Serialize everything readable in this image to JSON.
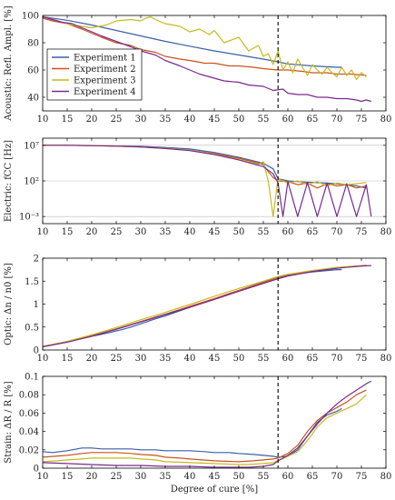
{
  "chart_data": [
    {
      "id": "acoustic",
      "type": "line",
      "ylabel": "Acoustic: Refl. Ampl. [%]",
      "xlim": [
        10,
        80
      ],
      "ylim": [
        30,
        100
      ],
      "xticks": [
        10,
        15,
        20,
        25,
        30,
        35,
        40,
        45,
        50,
        55,
        60,
        65,
        70,
        75,
        80
      ],
      "yticks": [
        40,
        60,
        80,
        100
      ],
      "vline_x": 58,
      "grid": false,
      "legend_position": "top-left",
      "series": [
        {
          "name": "Experiment 1",
          "color": "#3a5fa8",
          "x": [
            10,
            15,
            20,
            25,
            30,
            35,
            40,
            45,
            50,
            55,
            58,
            60,
            65,
            70,
            71
          ],
          "y": [
            99,
            96.5,
            93,
            89,
            85,
            81,
            77.5,
            74,
            71,
            68,
            66,
            64.5,
            63,
            62,
            62
          ]
        },
        {
          "name": "Experiment 2",
          "color": "#c9531f",
          "x": [
            10,
            12,
            15,
            18,
            20,
            22,
            25,
            28,
            30,
            33,
            35,
            38,
            40,
            43,
            45,
            48,
            50,
            53,
            55,
            58,
            60,
            63,
            65,
            68,
            70,
            73,
            76
          ],
          "y": [
            98,
            96,
            94,
            90,
            87,
            84,
            80,
            78,
            75,
            73,
            70,
            68,
            67,
            65,
            65,
            63,
            63,
            62,
            61,
            60,
            60,
            59,
            58,
            58,
            57,
            57,
            56
          ]
        },
        {
          "name": "Experiment 3",
          "color": "#c7ba1e",
          "x": [
            10,
            13,
            16,
            18,
            20,
            23,
            25,
            28,
            30,
            31,
            32,
            33,
            35,
            38,
            40,
            42,
            44,
            45,
            47,
            50,
            52,
            54,
            55,
            56,
            57,
            58,
            59,
            60,
            61,
            62,
            63,
            64,
            65,
            66,
            67,
            68,
            69,
            70,
            71,
            72,
            73,
            74,
            75,
            76
          ],
          "y": [
            99,
            96,
            93,
            92,
            91,
            93,
            96,
            97,
            96,
            98,
            99,
            97,
            94,
            92,
            88,
            90,
            86,
            89,
            80,
            84,
            74,
            78,
            70,
            72,
            64,
            74,
            60,
            66,
            58,
            68,
            62,
            56,
            64,
            60,
            57,
            62,
            58,
            55,
            62,
            56,
            60,
            53,
            58,
            55
          ]
        },
        {
          "name": "Experiment 4",
          "color": "#7a2a8f",
          "x": [
            10,
            12,
            14,
            16,
            18,
            20,
            22,
            25,
            28,
            30,
            33,
            35,
            38,
            40,
            42,
            45,
            47,
            50,
            52,
            55,
            57,
            59,
            60,
            62,
            64,
            66,
            68,
            70,
            72,
            74,
            75,
            76,
            77
          ],
          "y": [
            99,
            97,
            95,
            94,
            91,
            88,
            85,
            81,
            77,
            74,
            71,
            67,
            63,
            60,
            57,
            54,
            52,
            51,
            49,
            48,
            45,
            46,
            43,
            42,
            42,
            40,
            40,
            39,
            39,
            38,
            37,
            38,
            37
          ]
        }
      ]
    },
    {
      "id": "electric",
      "type": "line",
      "ylabel": "Electric: fCC [Hz]",
      "scale": "log",
      "xlim": [
        10,
        80
      ],
      "ylim": [
        0.0001,
        100000000
      ],
      "xticks": [
        10,
        15,
        20,
        25,
        30,
        35,
        40,
        45,
        50,
        55,
        60,
        65,
        70,
        75,
        80
      ],
      "yticks": [
        0.001,
        100,
        10000000
      ],
      "ytick_labels": [
        "10⁻³",
        "10²",
        "10⁷"
      ],
      "vline_x": 58,
      "grid": true,
      "series": [
        {
          "name": "Experiment 1",
          "color": "#3a5fa8",
          "x": [
            10,
            15,
            20,
            25,
            30,
            35,
            40,
            45,
            50,
            55,
            57,
            58,
            60,
            62,
            65,
            68,
            70,
            72,
            74,
            76
          ],
          "y": [
            10000000,
            10000000,
            9000000,
            8000000,
            7000000,
            5000000,
            3000000,
            1000000,
            200000,
            30000,
            5000,
            200,
            100,
            80,
            60,
            50,
            40,
            30,
            20,
            10
          ]
        },
        {
          "name": "Experiment 2",
          "color": "#c9531f",
          "x": [
            10,
            15,
            20,
            25,
            30,
            35,
            40,
            45,
            50,
            55,
            56,
            57,
            58,
            60,
            62,
            64,
            66,
            68,
            70,
            72,
            74,
            76
          ],
          "y": [
            10000000,
            10000000,
            9000000,
            8000000,
            6000000,
            4000000,
            2000000,
            700000,
            150000,
            20000,
            2000,
            300,
            100,
            80,
            30,
            50,
            10,
            40,
            20,
            30,
            10,
            20
          ]
        },
        {
          "name": "Experiment 3",
          "color": "#c7ba1e",
          "x": [
            10,
            15,
            20,
            25,
            30,
            35,
            40,
            45,
            50,
            54,
            55,
            56,
            57,
            58,
            60,
            62,
            64,
            66,
            68,
            70,
            72,
            74,
            76
          ],
          "y": [
            10000000,
            10000000,
            9500000,
            8000000,
            6000000,
            4000000,
            2000000,
            600000,
            100000,
            20000,
            50000,
            100,
            0.001,
            200,
            50,
            100,
            30,
            80,
            20,
            50,
            30,
            40,
            60
          ]
        },
        {
          "name": "Experiment 4",
          "color": "#7a2a8f",
          "x": [
            10,
            15,
            20,
            25,
            30,
            35,
            40,
            45,
            50,
            55,
            57,
            58,
            59,
            60,
            62,
            64,
            66,
            68,
            70,
            72,
            74,
            76,
            77
          ],
          "y": [
            10000000,
            10000000,
            9000000,
            7500000,
            6000000,
            3500000,
            1800000,
            500000,
            90000,
            10000,
            1000,
            50,
            0.001,
            80,
            0.001,
            60,
            0.001,
            50,
            0.001,
            40,
            0.001,
            30,
            0.001
          ]
        }
      ]
    },
    {
      "id": "optic",
      "type": "line",
      "ylabel": "Optic: Δn / n0 [%]",
      "xlim": [
        10,
        80
      ],
      "ylim": [
        0,
        2
      ],
      "xticks": [
        10,
        15,
        20,
        25,
        30,
        35,
        40,
        45,
        50,
        55,
        60,
        65,
        70,
        75,
        80
      ],
      "yticks": [
        0,
        0.5,
        1,
        1.5,
        2
      ],
      "ytick_labels": [
        "0",
        "0.5",
        "1",
        "1.5",
        "2"
      ],
      "vline_x": 58,
      "grid": false,
      "series": [
        {
          "name": "Experiment 1",
          "color": "#3a5fa8",
          "x": [
            10,
            15,
            20,
            22,
            24,
            26,
            28,
            33,
            35,
            40,
            45,
            50,
            55,
            58,
            60,
            65,
            70,
            71
          ],
          "y": [
            0.08,
            0.18,
            0.3,
            0.34,
            0.39,
            0.44,
            0.5,
            0.68,
            0.74,
            0.93,
            1.11,
            1.3,
            1.48,
            1.58,
            1.63,
            1.7,
            1.75,
            1.75
          ]
        },
        {
          "name": "Experiment 2",
          "color": "#c9531f",
          "x": [
            10,
            15,
            20,
            25,
            30,
            35,
            40,
            45,
            50,
            55,
            58,
            60,
            65,
            70,
            75,
            76
          ],
          "y": [
            0.07,
            0.18,
            0.31,
            0.46,
            0.62,
            0.78,
            0.95,
            1.12,
            1.3,
            1.47,
            1.57,
            1.62,
            1.72,
            1.79,
            1.83,
            1.84
          ]
        },
        {
          "name": "Experiment 3",
          "color": "#c7ba1e",
          "x": [
            10,
            15,
            20,
            25,
            30,
            33,
            35,
            40,
            45,
            50,
            55,
            58,
            60,
            65,
            70,
            75,
            76
          ],
          "y": [
            0.08,
            0.19,
            0.33,
            0.49,
            0.66,
            0.75,
            0.82,
            0.99,
            1.17,
            1.34,
            1.5,
            1.6,
            1.65,
            1.73,
            1.8,
            1.84,
            1.85
          ]
        },
        {
          "name": "Experiment 4",
          "color": "#7a2a8f",
          "x": [
            10,
            15,
            20,
            25,
            30,
            35,
            40,
            45,
            50,
            55,
            58,
            60,
            65,
            70,
            75,
            77
          ],
          "y": [
            0.07,
            0.17,
            0.3,
            0.45,
            0.61,
            0.77,
            0.93,
            1.1,
            1.28,
            1.45,
            1.55,
            1.61,
            1.71,
            1.78,
            1.83,
            1.84
          ]
        }
      ]
    },
    {
      "id": "strain",
      "type": "line",
      "ylabel": "Strain: ΔR / R [%]",
      "xlabel": "Degree of cure [%]",
      "xlim": [
        10,
        80
      ],
      "ylim": [
        0,
        0.1
      ],
      "xticks": [
        10,
        15,
        20,
        25,
        30,
        35,
        40,
        45,
        50,
        55,
        60,
        65,
        70,
        75,
        80
      ],
      "yticks": [
        0,
        0.02,
        0.04,
        0.06,
        0.08,
        0.1
      ],
      "ytick_labels": [
        "0",
        "0.02",
        "0.04",
        "0.06",
        "0.08",
        "0.1"
      ],
      "vline_x": 58,
      "grid": false,
      "series": [
        {
          "name": "Experiment 1",
          "color": "#3a5fa8",
          "x": [
            10,
            12,
            15,
            18,
            20,
            22,
            25,
            28,
            30,
            33,
            35,
            38,
            40,
            43,
            45,
            48,
            50,
            53,
            55,
            57,
            58,
            60,
            62,
            64,
            66,
            68,
            70,
            71
          ],
          "y": [
            0.018,
            0.017,
            0.019,
            0.022,
            0.022,
            0.021,
            0.021,
            0.021,
            0.02,
            0.02,
            0.019,
            0.019,
            0.019,
            0.018,
            0.017,
            0.017,
            0.016,
            0.015,
            0.014,
            0.013,
            0.012,
            0.013,
            0.02,
            0.035,
            0.05,
            0.058,
            0.062,
            0.065
          ]
        },
        {
          "name": "Experiment 2",
          "color": "#c9531f",
          "x": [
            10,
            15,
            18,
            20,
            25,
            28,
            30,
            33,
            35,
            38,
            40,
            45,
            50,
            53,
            55,
            57,
            58,
            60,
            62,
            64,
            66,
            68,
            70,
            72,
            74,
            76
          ],
          "y": [
            0.012,
            0.014,
            0.016,
            0.017,
            0.017,
            0.016,
            0.015,
            0.014,
            0.012,
            0.011,
            0.01,
            0.008,
            0.007,
            0.008,
            0.009,
            0.01,
            0.011,
            0.016,
            0.025,
            0.04,
            0.052,
            0.06,
            0.066,
            0.072,
            0.08,
            0.085
          ]
        },
        {
          "name": "Experiment 3",
          "color": "#c7ba1e",
          "x": [
            10,
            13,
            15,
            18,
            20,
            23,
            25,
            28,
            30,
            33,
            34,
            35,
            40,
            45,
            50,
            52,
            55,
            57,
            58,
            60,
            62,
            64,
            66,
            68,
            70,
            72,
            74,
            76
          ],
          "y": [
            0.007,
            0.008,
            0.009,
            0.01,
            0.011,
            0.011,
            0.011,
            0.011,
            0.01,
            0.009,
            0.008,
            0.007,
            0.006,
            0.005,
            0.004,
            0.004,
            0.005,
            0.006,
            0.008,
            0.013,
            0.018,
            0.03,
            0.045,
            0.055,
            0.06,
            0.065,
            0.07,
            0.08
          ]
        },
        {
          "name": "Experiment 4",
          "color": "#7a2a8f",
          "x": [
            10,
            15,
            20,
            25,
            30,
            35,
            40,
            45,
            50,
            52,
            55,
            57,
            58,
            60,
            62,
            64,
            66,
            68,
            70,
            72,
            74,
            76,
            77
          ],
          "y": [
            0.006,
            0.005,
            0.004,
            0.003,
            0.003,
            0.002,
            0.002,
            0.001,
            0.001,
            0.001,
            0.002,
            0.004,
            0.008,
            0.014,
            0.022,
            0.035,
            0.048,
            0.06,
            0.07,
            0.078,
            0.085,
            0.092,
            0.095
          ]
        }
      ]
    }
  ]
}
